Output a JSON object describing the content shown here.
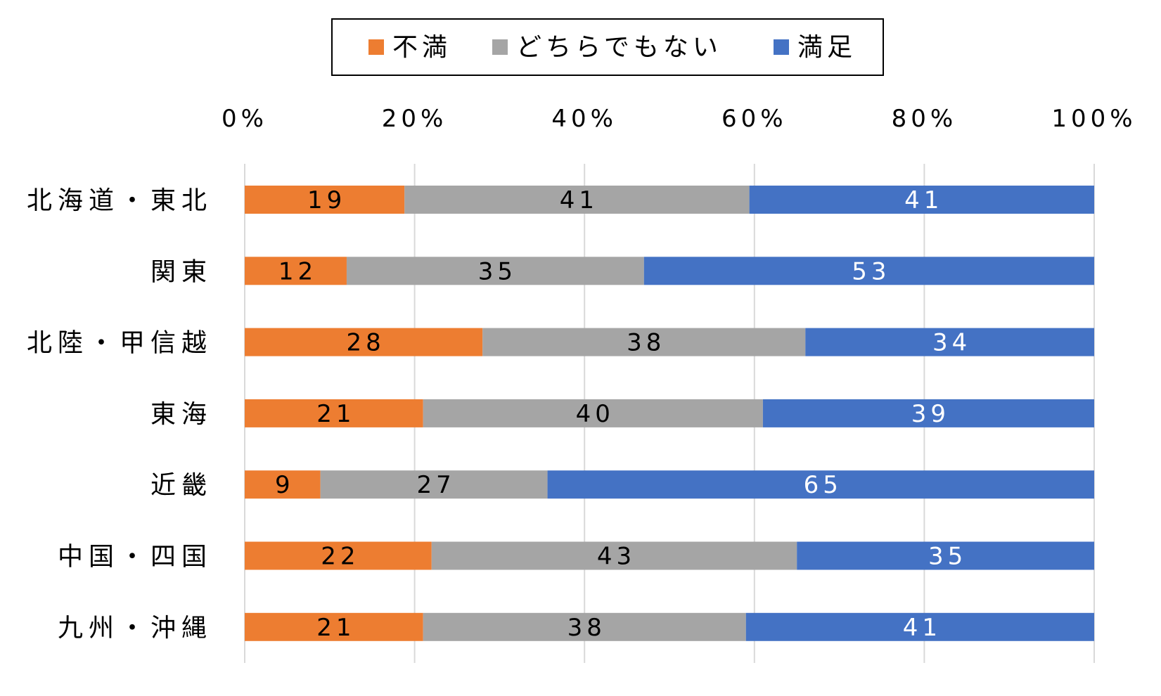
{
  "chart_data": {
    "type": "bar",
    "orientation": "horizontal",
    "stacked": true,
    "categories": [
      "北海道・東北",
      "関東",
      "北陸・甲信越",
      "東海",
      "近畿",
      "中国・四国",
      "九州・沖縄"
    ],
    "series": [
      {
        "name": "不満",
        "color": "#ed7d31",
        "label_color": "#000000",
        "values": [
          19,
          12,
          28,
          21,
          9,
          22,
          21
        ]
      },
      {
        "name": "どちらでもない",
        "color": "#a5a5a5",
        "label_color": "#000000",
        "values": [
          41,
          35,
          38,
          40,
          27,
          43,
          38
        ]
      },
      {
        "name": "満足",
        "color": "#4472c4",
        "label_color": "#ffffff",
        "values": [
          41,
          53,
          34,
          39,
          65,
          35,
          41
        ]
      }
    ],
    "xlim": [
      0,
      100
    ],
    "x_ticks": [
      "0%",
      "20%",
      "40%",
      "60%",
      "80%",
      "100%"
    ],
    "x_tick_values": [
      0,
      20,
      40,
      60,
      80,
      100
    ],
    "grid": true,
    "legend_position": "top",
    "xaxis_position": "top"
  }
}
